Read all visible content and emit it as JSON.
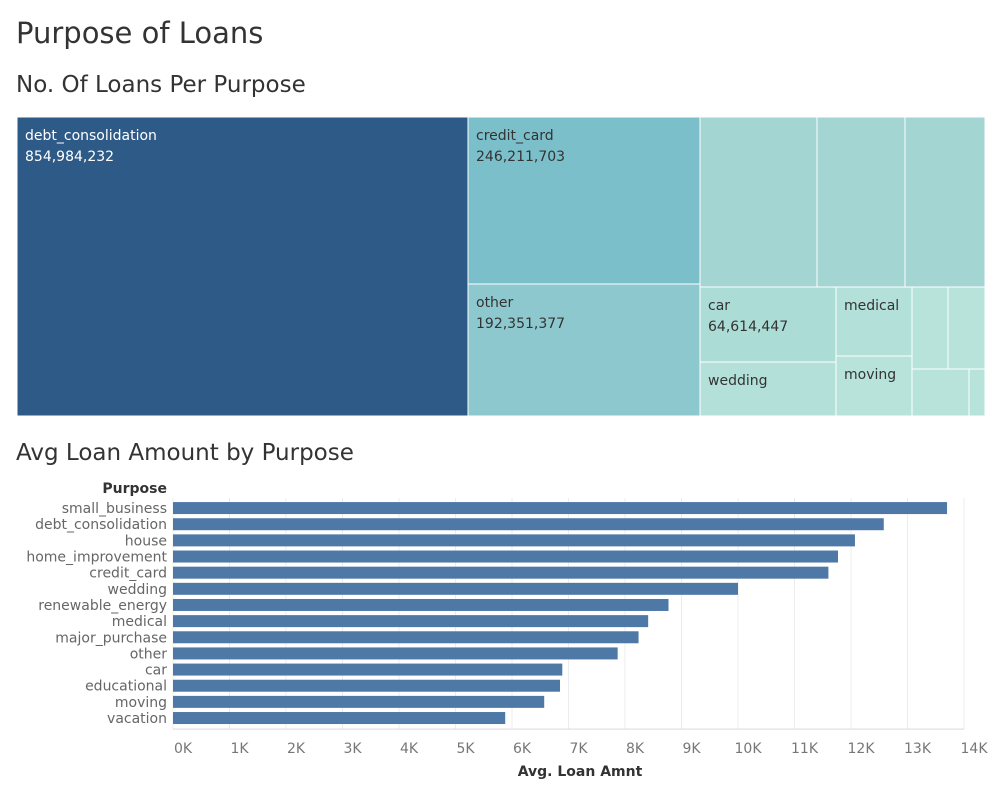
{
  "dashboard": {
    "title": "Purpose of Loans"
  },
  "chart_data": [
    {
      "type": "treemap",
      "title": "No. Of Loans Per Purpose",
      "tiles": [
        {
          "label": "debt_consolidation",
          "value": "854,984,232",
          "color": "#2e5a87"
        },
        {
          "label": "credit_card",
          "value": "246,211,703",
          "color": "#7bbfca"
        },
        {
          "label": "other",
          "value": "192,351,377",
          "color": "#8ec8cf"
        },
        {
          "label": "",
          "value": "",
          "color": "#a3d5d3"
        },
        {
          "label": "",
          "value": "",
          "color": "#a3d5d3"
        },
        {
          "label": "",
          "value": "",
          "color": "#a3d5d3"
        },
        {
          "label": "car",
          "value": "64,614,447",
          "color": "#acdcd6"
        },
        {
          "label": "wedding",
          "value": "",
          "color": "#b3e0d8"
        },
        {
          "label": "medical",
          "value": "",
          "color": "#b3e0d8"
        },
        {
          "label": "moving",
          "value": "",
          "color": "#b7e3da"
        },
        {
          "label": "",
          "value": "",
          "color": "#b7e3da"
        },
        {
          "label": "",
          "value": "",
          "color": "#b7e3da"
        },
        {
          "label": "",
          "value": "",
          "color": "#b7e3da"
        },
        {
          "label": "",
          "value": "",
          "color": "#b7e3da"
        }
      ]
    },
    {
      "type": "bar",
      "orientation": "horizontal",
      "title": "Avg Loan Amount by Purpose",
      "category_header": "Purpose",
      "xlabel": "Avg. Loan Amnt",
      "xlim": [
        0,
        14000
      ],
      "grid": true,
      "bar_color": "#4e79a7",
      "ticks": [
        {
          "value": 0,
          "label": "0K"
        },
        {
          "value": 1000,
          "label": "1K"
        },
        {
          "value": 2000,
          "label": "2K"
        },
        {
          "value": 3000,
          "label": "3K"
        },
        {
          "value": 4000,
          "label": "4K"
        },
        {
          "value": 5000,
          "label": "5K"
        },
        {
          "value": 6000,
          "label": "6K"
        },
        {
          "value": 7000,
          "label": "7K"
        },
        {
          "value": 8000,
          "label": "8K"
        },
        {
          "value": 9000,
          "label": "9K"
        },
        {
          "value": 10000,
          "label": "10K"
        },
        {
          "value": 11000,
          "label": "11K"
        },
        {
          "value": 12000,
          "label": "12K"
        },
        {
          "value": 13000,
          "label": "13K"
        },
        {
          "value": 14000,
          "label": "14K"
        }
      ],
      "categories": [
        "small_business",
        "debt_consolidation",
        "house",
        "home_improvement",
        "credit_card",
        "wedding",
        "renewable_energy",
        "medical",
        "major_purchase",
        "other",
        "car",
        "educational",
        "moving",
        "vacation"
      ],
      "values": [
        13700,
        12580,
        12070,
        11770,
        11600,
        10000,
        8770,
        8410,
        8240,
        7870,
        6890,
        6850,
        6570,
        5880
      ]
    }
  ]
}
